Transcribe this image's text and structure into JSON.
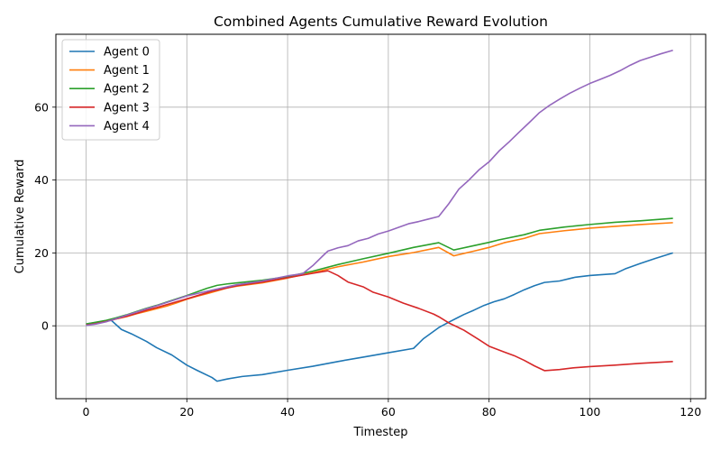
{
  "chart_data": {
    "type": "line",
    "title": "Combined Agents Cumulative Reward Evolution",
    "xlabel": "Timestep",
    "ylabel": "Cumulative Reward",
    "xlim": [
      -6,
      123
    ],
    "ylim": [
      -20,
      80
    ],
    "xticks": [
      0,
      20,
      40,
      60,
      80,
      100,
      120
    ],
    "yticks": [
      0,
      20,
      40,
      60
    ],
    "grid": true,
    "legend_position": "top-left",
    "series": [
      {
        "name": "Agent 0",
        "color": "#1f77b4",
        "points": [
          [
            0,
            0.5
          ],
          [
            2,
            0.9
          ],
          [
            4,
            1.4
          ],
          [
            5,
            1.5
          ],
          [
            7,
            -1.0
          ],
          [
            9,
            -2.2
          ],
          [
            12,
            -4.3
          ],
          [
            14,
            -6.0
          ],
          [
            17,
            -8.0
          ],
          [
            20,
            -10.8
          ],
          [
            22,
            -12.2
          ],
          [
            25,
            -14.2
          ],
          [
            26,
            -15.2
          ],
          [
            28,
            -14.6
          ],
          [
            31,
            -13.9
          ],
          [
            35,
            -13.4
          ],
          [
            40,
            -12.2
          ],
          [
            45,
            -11.1
          ],
          [
            50,
            -9.8
          ],
          [
            55,
            -8.6
          ],
          [
            60,
            -7.4
          ],
          [
            65,
            -6.2
          ],
          [
            67,
            -3.5
          ],
          [
            70,
            -0.5
          ],
          [
            72,
            1.0
          ],
          [
            75,
            3.1
          ],
          [
            77,
            4.3
          ],
          [
            79,
            5.6
          ],
          [
            81,
            6.6
          ],
          [
            83,
            7.4
          ],
          [
            85,
            8.6
          ],
          [
            87,
            9.9
          ],
          [
            89,
            11.0
          ],
          [
            91,
            11.9
          ],
          [
            94,
            12.3
          ],
          [
            97,
            13.3
          ],
          [
            100,
            13.8
          ],
          [
            105,
            14.3
          ],
          [
            107,
            15.6
          ],
          [
            110,
            17.1
          ],
          [
            113,
            18.5
          ],
          [
            116.5,
            20.0
          ]
        ]
      },
      {
        "name": "Agent 1",
        "color": "#ff7f0e",
        "points": [
          [
            0,
            0.3
          ],
          [
            2,
            0.8
          ],
          [
            4,
            1.3
          ],
          [
            6,
            1.9
          ],
          [
            8,
            2.5
          ],
          [
            10,
            3.3
          ],
          [
            12,
            4.0
          ],
          [
            14,
            4.7
          ],
          [
            16,
            5.4
          ],
          [
            18,
            6.3
          ],
          [
            20,
            7.3
          ],
          [
            22,
            8.1
          ],
          [
            24,
            8.8
          ],
          [
            26,
            9.6
          ],
          [
            28,
            10.4
          ],
          [
            30,
            10.9
          ],
          [
            35,
            11.8
          ],
          [
            40,
            13.1
          ],
          [
            45,
            14.6
          ],
          [
            50,
            16.2
          ],
          [
            55,
            17.5
          ],
          [
            60,
            19.0
          ],
          [
            65,
            20.1
          ],
          [
            70,
            21.5
          ],
          [
            73,
            19.2
          ],
          [
            77,
            20.5
          ],
          [
            80,
            21.5
          ],
          [
            83,
            22.8
          ],
          [
            87,
            24.0
          ],
          [
            90,
            25.3
          ],
          [
            95,
            26.1
          ],
          [
            100,
            26.8
          ],
          [
            105,
            27.3
          ],
          [
            110,
            27.8
          ],
          [
            116.5,
            28.3
          ]
        ]
      },
      {
        "name": "Agent 2",
        "color": "#2ca02c",
        "points": [
          [
            0,
            0.5
          ],
          [
            2,
            1.0
          ],
          [
            4,
            1.5
          ],
          [
            6,
            2.2
          ],
          [
            8,
            3.0
          ],
          [
            10,
            3.9
          ],
          [
            12,
            4.8
          ],
          [
            14,
            5.6
          ],
          [
            16,
            6.5
          ],
          [
            18,
            7.4
          ],
          [
            20,
            8.3
          ],
          [
            22,
            9.3
          ],
          [
            24,
            10.3
          ],
          [
            26,
            11.1
          ],
          [
            28,
            11.5
          ],
          [
            30,
            11.8
          ],
          [
            35,
            12.5
          ],
          [
            40,
            13.5
          ],
          [
            45,
            15.0
          ],
          [
            50,
            16.8
          ],
          [
            55,
            18.4
          ],
          [
            60,
            19.9
          ],
          [
            65,
            21.5
          ],
          [
            70,
            22.8
          ],
          [
            73,
            20.8
          ],
          [
            77,
            22.0
          ],
          [
            80,
            22.9
          ],
          [
            82,
            23.6
          ],
          [
            87,
            25.0
          ],
          [
            90,
            26.2
          ],
          [
            95,
            27.1
          ],
          [
            100,
            27.8
          ],
          [
            105,
            28.4
          ],
          [
            110,
            28.8
          ],
          [
            116.5,
            29.5
          ]
        ]
      },
      {
        "name": "Agent 3",
        "color": "#d62728",
        "points": [
          [
            0,
            0.2
          ],
          [
            2,
            0.6
          ],
          [
            4,
            1.2
          ],
          [
            6,
            1.9
          ],
          [
            8,
            2.6
          ],
          [
            10,
            3.4
          ],
          [
            12,
            4.3
          ],
          [
            14,
            5.0
          ],
          [
            16,
            5.8
          ],
          [
            18,
            6.6
          ],
          [
            20,
            7.4
          ],
          [
            25,
            9.5
          ],
          [
            30,
            11.0
          ],
          [
            35,
            12.0
          ],
          [
            40,
            13.2
          ],
          [
            45,
            14.4
          ],
          [
            48,
            15.1
          ],
          [
            50,
            13.8
          ],
          [
            52,
            12.0
          ],
          [
            55,
            10.7
          ],
          [
            57,
            9.2
          ],
          [
            60,
            7.9
          ],
          [
            63,
            6.2
          ],
          [
            66,
            4.8
          ],
          [
            69,
            3.2
          ],
          [
            70,
            2.5
          ],
          [
            72,
            0.8
          ],
          [
            75,
            -1.2
          ],
          [
            78,
            -3.8
          ],
          [
            80,
            -5.6
          ],
          [
            83,
            -7.2
          ],
          [
            85,
            -8.2
          ],
          [
            87,
            -9.5
          ],
          [
            89,
            -11.0
          ],
          [
            91,
            -12.3
          ],
          [
            94,
            -12.0
          ],
          [
            97,
            -11.5
          ],
          [
            100,
            -11.2
          ],
          [
            105,
            -10.8
          ],
          [
            110,
            -10.3
          ],
          [
            116.5,
            -9.8
          ]
        ]
      },
      {
        "name": "Agent 4",
        "color": "#9467bd",
        "points": [
          [
            0,
            0.1
          ],
          [
            2,
            0.5
          ],
          [
            4,
            1.1
          ],
          [
            6,
            2.0
          ],
          [
            8,
            2.9
          ],
          [
            10,
            3.8
          ],
          [
            12,
            4.7
          ],
          [
            14,
            5.5
          ],
          [
            16,
            6.4
          ],
          [
            18,
            7.3
          ],
          [
            20,
            8.2
          ],
          [
            25,
            9.8
          ],
          [
            30,
            11.3
          ],
          [
            35,
            12.3
          ],
          [
            40,
            13.7
          ],
          [
            43,
            14.3
          ],
          [
            45,
            16.5
          ],
          [
            47,
            19.2
          ],
          [
            48,
            20.5
          ],
          [
            50,
            21.4
          ],
          [
            52,
            22.0
          ],
          [
            54,
            23.3
          ],
          [
            56,
            24.0
          ],
          [
            58,
            25.2
          ],
          [
            60,
            26.0
          ],
          [
            62,
            27.0
          ],
          [
            64,
            28.0
          ],
          [
            66,
            28.6
          ],
          [
            68,
            29.3
          ],
          [
            70,
            30.0
          ],
          [
            72,
            33.5
          ],
          [
            74,
            37.5
          ],
          [
            76,
            40.0
          ],
          [
            78,
            42.8
          ],
          [
            80,
            45.0
          ],
          [
            82,
            48.0
          ],
          [
            84,
            50.5
          ],
          [
            86,
            53.2
          ],
          [
            88,
            55.8
          ],
          [
            90,
            58.5
          ],
          [
            92,
            60.5
          ],
          [
            94,
            62.2
          ],
          [
            96,
            63.8
          ],
          [
            98,
            65.2
          ],
          [
            100,
            66.5
          ],
          [
            102,
            67.6
          ],
          [
            104,
            68.7
          ],
          [
            106,
            70.0
          ],
          [
            108,
            71.5
          ],
          [
            110,
            72.8
          ],
          [
            112,
            73.7
          ],
          [
            114,
            74.6
          ],
          [
            116.5,
            75.6
          ]
        ]
      }
    ]
  }
}
